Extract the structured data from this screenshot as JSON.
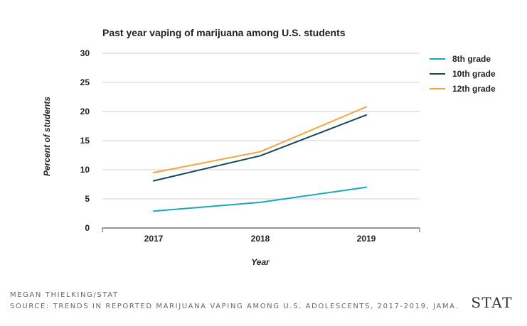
{
  "chart_data": {
    "type": "line",
    "title": "Past year vaping of marijuana among U.S. students",
    "xlabel": "Year",
    "ylabel": "Percent of students",
    "categories": [
      "2017",
      "2018",
      "2019"
    ],
    "ylim": [
      0,
      30
    ],
    "yticks": [
      "0",
      "5",
      "10",
      "15",
      "20",
      "25",
      "30"
    ],
    "grid": true,
    "legend_position": "right",
    "series": [
      {
        "name": "8th grade",
        "values": [
          2.9,
          4.4,
          7.0
        ],
        "color": "#1aa8b5"
      },
      {
        "name": "10th grade",
        "values": [
          8.1,
          12.4,
          19.4
        ],
        "color": "#15475a"
      },
      {
        "name": "12th grade",
        "values": [
          9.5,
          13.1,
          20.8
        ],
        "color": "#f5a540"
      }
    ]
  },
  "footer": {
    "credit": "MEGAN THIELKING/STAT",
    "source": "SOURCE: TRENDS IN REPORTED MARIJUANA VAPING AMONG U.S. ADOLESCENTS, 2017-2019, JAMA.",
    "logo": "STAT"
  }
}
